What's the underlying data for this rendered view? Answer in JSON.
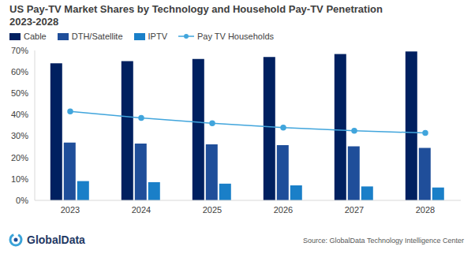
{
  "chart_data": {
    "type": "bar",
    "title": "US Pay-TV Market Shares by Technology and Household Pay-TV Penetration",
    "subtitle": "2023-2028",
    "categories": [
      "2023",
      "2024",
      "2025",
      "2026",
      "2027",
      "2028"
    ],
    "series": [
      {
        "name": "Cable",
        "type": "bar",
        "color": "#002060",
        "values": [
          64,
          65,
          66,
          67,
          68.3,
          69.5
        ]
      },
      {
        "name": "DTH/Satellite",
        "type": "bar",
        "color": "#1f4e9a",
        "values": [
          27,
          26.5,
          26.2,
          25.8,
          25.2,
          24.5
        ]
      },
      {
        "name": "IPTV",
        "type": "bar",
        "color": "#1a7fc8",
        "values": [
          9,
          8.5,
          7.8,
          7,
          6.5,
          6
        ]
      },
      {
        "name": "Pay TV Households",
        "type": "line",
        "color": "#41a5dc",
        "marker": "circle",
        "values": [
          41.5,
          38.5,
          36,
          34,
          32.5,
          31.5
        ]
      }
    ],
    "ylim": [
      0,
      70
    ],
    "yticks": [
      {
        "value": 0,
        "label": "0%"
      },
      {
        "value": 10,
        "label": "10%"
      },
      {
        "value": 20,
        "label": "20%"
      },
      {
        "value": 30,
        "label": "30%"
      },
      {
        "value": 40,
        "label": "40%"
      },
      {
        "value": 50,
        "label": "50%"
      },
      {
        "value": 60,
        "label": "60%"
      },
      {
        "value": 70,
        "label": "70%"
      }
    ],
    "grid": false,
    "legend": "top",
    "brand": "GlobalData",
    "source": "Source: GlobalData Technology Intelligence Center"
  }
}
